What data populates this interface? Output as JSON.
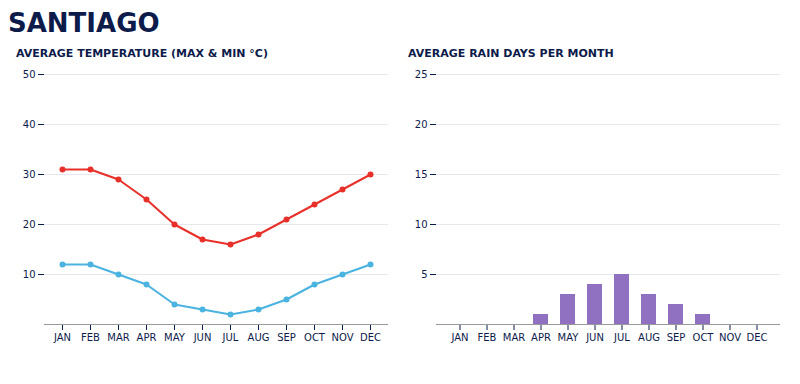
{
  "title": "SANTIAGO",
  "chart_data": [
    {
      "type": "line",
      "title": "AVERAGE TEMPERATURE (MAX & MIN °C)",
      "categories": [
        "JAN",
        "FEB",
        "MAR",
        "APR",
        "MAY",
        "JUN",
        "JUL",
        "AUG",
        "SEP",
        "OCT",
        "NOV",
        "DEC"
      ],
      "series": [
        {
          "color": "#e8302a",
          "marker": "circle",
          "values": [
            31,
            31,
            29,
            25,
            20,
            17,
            16,
            18,
            21,
            24,
            27,
            30
          ]
        },
        {
          "color": "#4ab3e0",
          "marker": "circle",
          "values": [
            12,
            12,
            10,
            8,
            4,
            3,
            2,
            3,
            5,
            8,
            10,
            12
          ]
        }
      ],
      "ylim": [
        0,
        50
      ],
      "yticks": [
        10,
        20,
        30,
        40,
        50
      ],
      "grid": true
    },
    {
      "type": "bar",
      "title": "AVERAGE RAIN DAYS PER MONTH",
      "categories": [
        "JAN",
        "FEB",
        "MAR",
        "APR",
        "MAY",
        "JUN",
        "JUL",
        "AUG",
        "SEP",
        "OCT",
        "NOV",
        "DEC"
      ],
      "values": [
        0,
        0,
        0,
        1,
        3,
        4,
        5,
        3,
        2,
        1,
        0,
        0
      ],
      "color": "#9070c0",
      "ylim": [
        0,
        25
      ],
      "yticks": [
        5,
        10,
        15,
        20,
        25
      ],
      "grid": true
    }
  ]
}
